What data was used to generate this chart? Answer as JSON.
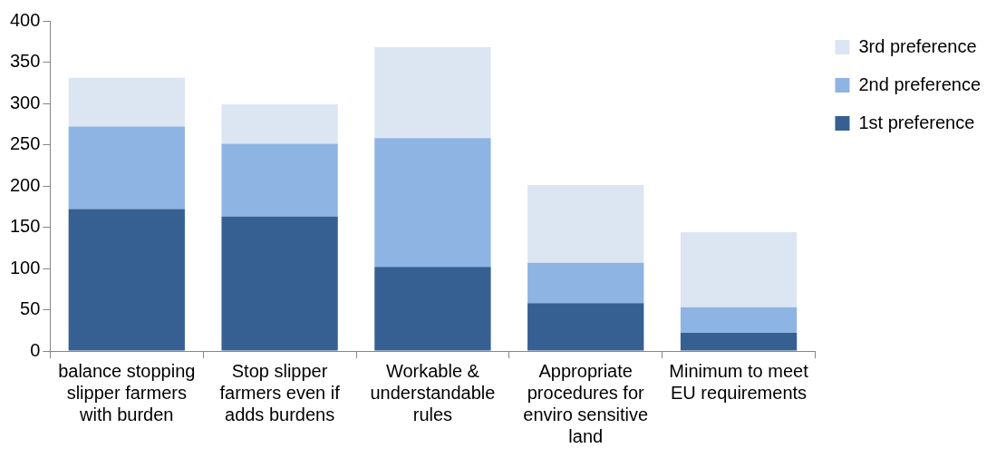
{
  "chart_data": {
    "type": "bar",
    "stacked": true,
    "categories": [
      "balance stopping slipper farmers with burden",
      "Stop slipper farmers even if adds burdens",
      "Workable & understandable rules",
      "Appropriate procedures for enviro sensitive land",
      "Minimum to meet EU requirements"
    ],
    "series": [
      {
        "name": "1st preference",
        "color": "#366092",
        "values": [
          172,
          163,
          102,
          58,
          22
        ]
      },
      {
        "name": "2nd preference",
        "color": "#8eb4e3",
        "values": [
          100,
          88,
          156,
          49,
          31
        ]
      },
      {
        "name": "3rd preference",
        "color": "#dce6f2",
        "values": [
          59,
          48,
          110,
          94,
          91
        ]
      }
    ],
    "ylim": [
      0,
      400
    ],
    "yticks": [
      0,
      50,
      100,
      150,
      200,
      250,
      300,
      350,
      400
    ],
    "grid": false,
    "legend": "top right"
  }
}
